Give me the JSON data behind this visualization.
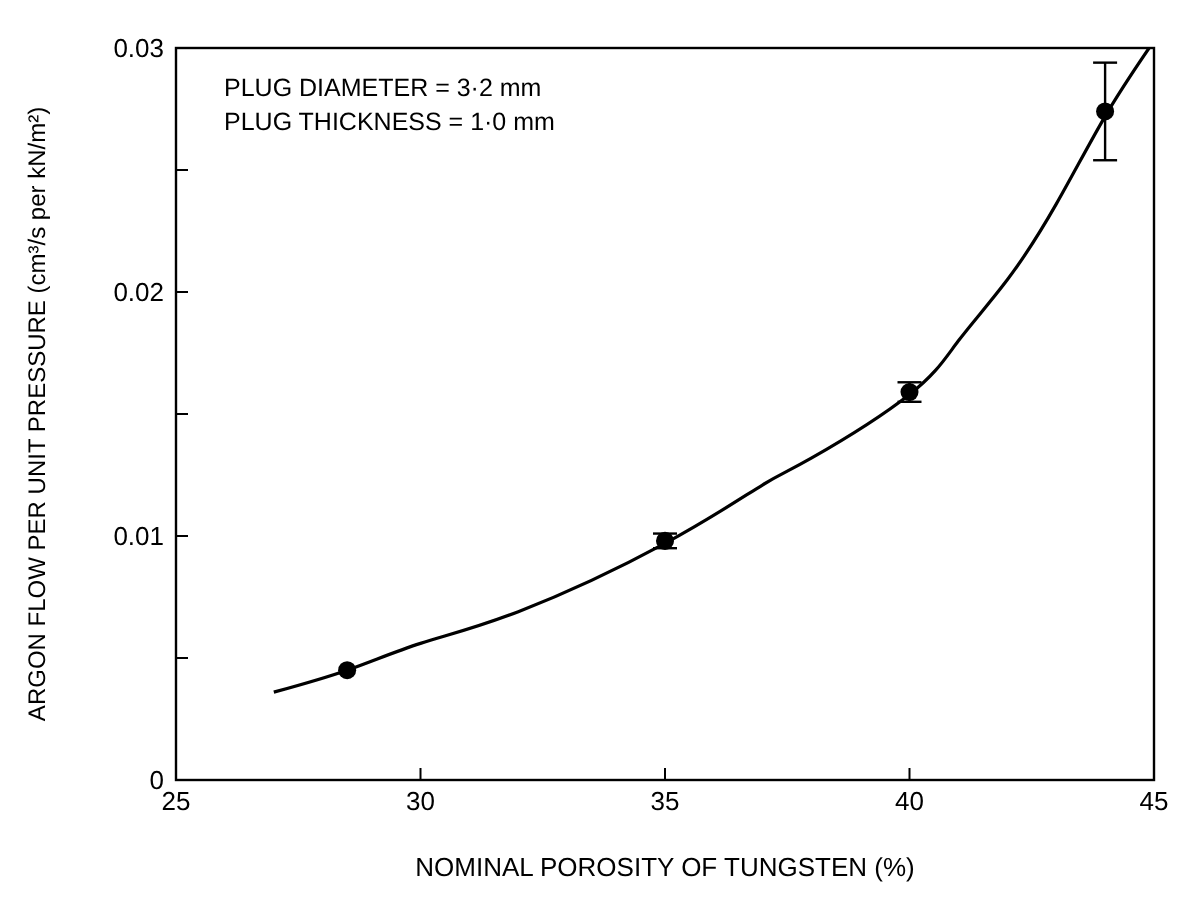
{
  "chart_data": {
    "type": "scatter",
    "xlabel": "NOMINAL POROSITY OF TUNGSTEN (%)",
    "ylabel": "ARGON FLOW PER UNIT PRESSURE (cm³/s per kN/m²)",
    "annotations": [
      "PLUG DIAMETER = 3·2 mm",
      "PLUG THICKNESS = 1·0 mm"
    ],
    "xlim": [
      25,
      45
    ],
    "xticks": [
      25,
      30,
      35,
      40,
      45
    ],
    "ylim": [
      0,
      0.03
    ],
    "yticks": [
      0,
      {
        "value": 0.005,
        "label": null
      },
      0.01,
      {
        "value": 0.015,
        "label": null
      },
      0.02,
      {
        "value": 0.025,
        "label": null
      },
      0.03
    ],
    "series": [
      {
        "type": "line",
        "color": "#000000",
        "marker": "none",
        "line_style": "solid",
        "x": [
          27,
          28.5,
          30,
          32,
          35,
          37,
          38,
          40,
          41,
          42,
          43,
          44,
          44.9
        ],
        "values": [
          0.0036,
          0.0045,
          0.0056,
          0.0069,
          0.0097,
          0.0121,
          0.0132,
          0.0158,
          0.018,
          0.0205,
          0.0236,
          0.0272,
          0.03
        ]
      },
      {
        "color": "#000000",
        "marker": "circle",
        "x": [
          28.5,
          35,
          40,
          44
        ],
        "values": [
          0.0045,
          0.0098,
          0.0159,
          0.0274
        ],
        "errors": [
          null,
          0.0003,
          0.0004,
          [
            0.0254,
            0.0294
          ]
        ]
      }
    ]
  }
}
